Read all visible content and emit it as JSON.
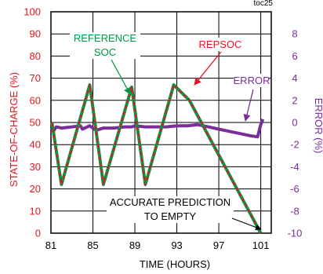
{
  "chart_data": {
    "type": "line",
    "corner_label": "toc25",
    "xlabel": "TIME (HOURS)",
    "ylabel_left": "STATE-OF-CHARGE (%)",
    "ylabel_right": "ERROR (%)",
    "xlim": [
      81,
      102
    ],
    "ylim_left": [
      0,
      100
    ],
    "ylim_right": [
      -10,
      10
    ],
    "x_ticks": [
      81,
      85,
      89,
      93,
      97,
      101
    ],
    "y_ticks_left": [
      0,
      10,
      20,
      30,
      40,
      50,
      60,
      70,
      80,
      90,
      100
    ],
    "y_ticks_right": [
      -10,
      -8,
      -6,
      -4,
      -2,
      0,
      2,
      4,
      6,
      8
    ],
    "grid": true,
    "colors": {
      "reference_soc": "#009a44",
      "repsoc": "#e4151f",
      "error": "#7b2d9b",
      "left_axis": "#e4151f",
      "right_axis": "#7b2d9b",
      "grid": "#000000"
    },
    "series": [
      {
        "name": "REFERENCE SOC",
        "axis": "left",
        "x": [
          81.1,
          82.0,
          84.7,
          86.0,
          88.7,
          90.0,
          92.7,
          94.2,
          101.0
        ],
        "y": [
          50,
          22,
          67,
          22,
          66,
          22,
          67,
          60,
          0
        ]
      },
      {
        "name": "REPSOC",
        "axis": "left",
        "x": [
          81.1,
          82.0,
          84.7,
          86.0,
          88.7,
          90.0,
          92.7,
          94.2,
          101.0
        ],
        "y": [
          50,
          22,
          67,
          22,
          66,
          22,
          67,
          60,
          0
        ]
      },
      {
        "name": "ERROR",
        "axis": "right",
        "x": [
          81.0,
          81.3,
          81.5,
          82.0,
          83.0,
          83.8,
          84.0,
          84.7,
          85.0,
          85.3,
          86.0,
          87.0,
          88.0,
          88.7,
          89.0,
          90.0,
          91.0,
          92.0,
          93.0,
          94.0,
          95.0,
          96.0,
          97.0,
          98.0,
          99.0,
          100.0,
          100.7,
          101.0,
          101.2
        ],
        "y": [
          -0.5,
          -0.7,
          -0.4,
          -0.5,
          -0.4,
          -0.3,
          -0.6,
          -0.3,
          -0.5,
          -0.7,
          -0.5,
          -0.5,
          -0.4,
          -0.4,
          -0.3,
          -0.4,
          -0.4,
          -0.4,
          -0.3,
          -0.3,
          -0.2,
          -0.4,
          -0.6,
          -0.8,
          -1.0,
          -1.2,
          -1.3,
          -0.2,
          0.3
        ]
      }
    ],
    "annotations": {
      "reference_soc": [
        "REFERENCE",
        "SOC"
      ],
      "repsoc": "REPSOC",
      "error": "ERROR",
      "prediction": [
        "ACCURATE PREDICTION",
        "TO EMPTY"
      ]
    }
  }
}
